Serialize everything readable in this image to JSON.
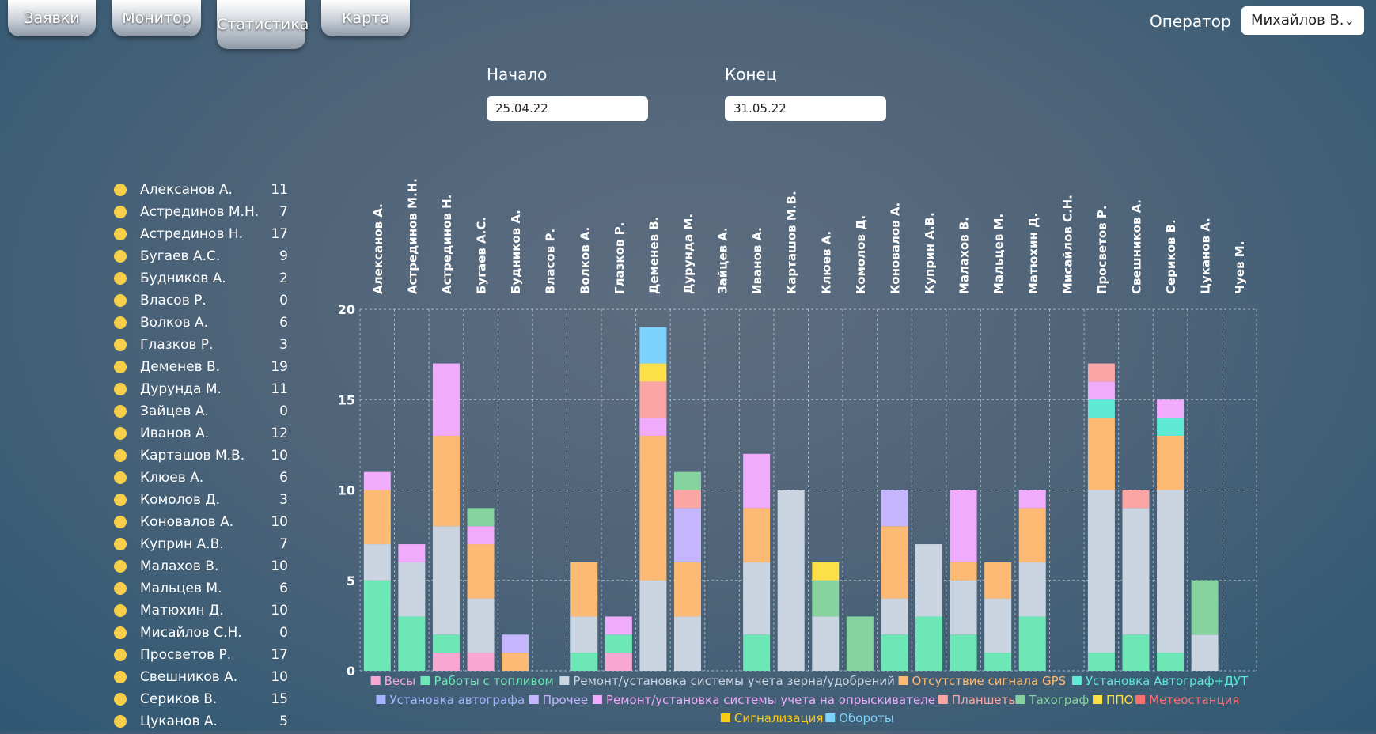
{
  "nav": {
    "tabs": [
      {
        "label": "Заявки"
      },
      {
        "label": "Монитор"
      },
      {
        "label": "Статистика",
        "active": true
      },
      {
        "label": "Карта"
      }
    ]
  },
  "operator": {
    "label": "Оператор",
    "selected": "Михайлов В."
  },
  "period": {
    "start_label": "Начало",
    "start_value": "25.04.22",
    "end_label": "Конец",
    "end_value": "31.05.22"
  },
  "operators_list": [
    {
      "name": "Алексанов А.",
      "count": 11
    },
    {
      "name": "Астрединов М.Н.",
      "count": 7
    },
    {
      "name": "Астрединов Н.",
      "count": 17
    },
    {
      "name": "Бугаев А.С.",
      "count": 9
    },
    {
      "name": "Будников А.",
      "count": 2
    },
    {
      "name": "Власов Р.",
      "count": 0
    },
    {
      "name": "Волков А.",
      "count": 6
    },
    {
      "name": "Глазков Р.",
      "count": 3
    },
    {
      "name": "Деменев В.",
      "count": 19
    },
    {
      "name": "Дурунда М.",
      "count": 11
    },
    {
      "name": "Зайцев А.",
      "count": 0
    },
    {
      "name": "Иванов А.",
      "count": 12
    },
    {
      "name": "Карташов М.В.",
      "count": 10
    },
    {
      "name": "Клюев А.",
      "count": 6
    },
    {
      "name": "Комолов Д.",
      "count": 3
    },
    {
      "name": "Коновалов А.",
      "count": 10
    },
    {
      "name": "Куприн А.В.",
      "count": 7
    },
    {
      "name": "Малахов В.",
      "count": 10
    },
    {
      "name": "Мальцев М.",
      "count": 6
    },
    {
      "name": "Матюхин Д.",
      "count": 10
    },
    {
      "name": "Мисайлов С.Н.",
      "count": 0
    },
    {
      "name": "Просветов Р.",
      "count": 17
    },
    {
      "name": "Свешников А.",
      "count": 10
    },
    {
      "name": "Сериков В.",
      "count": 15
    },
    {
      "name": "Цуканов А.",
      "count": 5
    }
  ],
  "chart_data": {
    "type": "bar",
    "stacked": true,
    "categories": [
      "Алексанов А.",
      "Астрединов М.Н.",
      "Астрединов Н.",
      "Бугаев А.С.",
      "Будников А.",
      "Власов Р.",
      "Волков А.",
      "Глазков Р.",
      "Деменев В.",
      "Дурунда М.",
      "Зайцев А.",
      "Иванов А.",
      "Карташов М.В.",
      "Клюев А.",
      "Комолов Д.",
      "Коновалов А.",
      "Куприн А.В.",
      "Малахов В.",
      "Мальцев М.",
      "Матюхин Д.",
      "Мисайлов С.Н.",
      "Просветов Р.",
      "Свешников А.",
      "Сериков В.",
      "Цуканов А.",
      "Чуев М."
    ],
    "ylim": [
      0,
      20
    ],
    "yticks": [
      0,
      5,
      10,
      15,
      20
    ],
    "grid": true,
    "legend_position": "bottom",
    "series": [
      {
        "name": "Весы",
        "color": "#f9a8d4",
        "values": [
          0,
          0,
          1,
          1,
          0,
          0,
          0,
          1,
          0,
          0,
          0,
          0,
          0,
          0,
          0,
          0,
          0,
          0,
          0,
          0,
          0,
          0,
          0,
          0,
          0,
          0
        ]
      },
      {
        "name": "Работы с топливом",
        "color": "#6ee7b7",
        "values": [
          5,
          3,
          1,
          0,
          0,
          0,
          1,
          1,
          0,
          0,
          0,
          2,
          0,
          0,
          0,
          2,
          3,
          2,
          1,
          3,
          0,
          1,
          2,
          1,
          0,
          0
        ]
      },
      {
        "name": "Ремонт/установка системы учета зерна/удобрений",
        "color": "#cbd5e1",
        "values": [
          2,
          3,
          6,
          3,
          0,
          0,
          2,
          0,
          5,
          3,
          0,
          4,
          10,
          3,
          0,
          2,
          4,
          3,
          3,
          3,
          0,
          9,
          7,
          9,
          2,
          0
        ]
      },
      {
        "name": "Отсутствие сигнала GPS",
        "color": "#fdba74",
        "values": [
          3,
          0,
          5,
          3,
          1,
          0,
          3,
          0,
          8,
          3,
          0,
          3,
          0,
          0,
          0,
          4,
          0,
          1,
          2,
          3,
          0,
          4,
          0,
          3,
          0,
          0
        ]
      },
      {
        "name": "Установка Автограф+ДУТ",
        "color": "#5eead4",
        "values": [
          0,
          0,
          0,
          0,
          0,
          0,
          0,
          0,
          0,
          0,
          0,
          0,
          0,
          0,
          0,
          0,
          0,
          0,
          0,
          0,
          0,
          1,
          0,
          1,
          0,
          0
        ]
      },
      {
        "name": "Установка автографа",
        "color": "#a5b4fc",
        "values": [
          0,
          0,
          0,
          0,
          0,
          0,
          0,
          0,
          0,
          0,
          0,
          0,
          0,
          0,
          0,
          0,
          0,
          0,
          0,
          0,
          0,
          0,
          0,
          0,
          0,
          0
        ]
      },
      {
        "name": "Прочее",
        "color": "#c4b5fd",
        "values": [
          0,
          0,
          0,
          0,
          1,
          0,
          0,
          0,
          0,
          3,
          0,
          0,
          0,
          0,
          0,
          2,
          0,
          0,
          0,
          0,
          0,
          0,
          0,
          0,
          0,
          0
        ]
      },
      {
        "name": "Ремонт/установка системы учета на опрыскивателе",
        "color": "#f0abfc",
        "values": [
          1,
          1,
          4,
          1,
          0,
          0,
          0,
          1,
          1,
          0,
          0,
          3,
          0,
          0,
          0,
          0,
          0,
          4,
          0,
          1,
          0,
          1,
          0,
          1,
          0,
          0
        ]
      },
      {
        "name": "Планшеты",
        "color": "#fca5a5",
        "values": [
          0,
          0,
          0,
          0,
          0,
          0,
          0,
          0,
          2,
          1,
          0,
          0,
          0,
          0,
          0,
          0,
          0,
          0,
          0,
          0,
          0,
          1,
          1,
          0,
          0,
          0
        ]
      },
      {
        "name": "Тахограф",
        "color": "#86d3a0",
        "values": [
          0,
          0,
          0,
          1,
          0,
          0,
          0,
          0,
          0,
          1,
          0,
          0,
          0,
          2,
          3,
          0,
          0,
          0,
          0,
          0,
          0,
          0,
          0,
          0,
          3,
          0
        ]
      },
      {
        "name": "ППО",
        "color": "#fde047",
        "values": [
          0,
          0,
          0,
          0,
          0,
          0,
          0,
          0,
          1,
          0,
          0,
          0,
          0,
          1,
          0,
          0,
          0,
          0,
          0,
          0,
          0,
          0,
          0,
          0,
          0,
          0
        ]
      },
      {
        "name": "Метеостанция",
        "color": "#f87171",
        "values": [
          0,
          0,
          0,
          0,
          0,
          0,
          0,
          0,
          0,
          0,
          0,
          0,
          0,
          0,
          0,
          0,
          0,
          0,
          0,
          0,
          0,
          0,
          0,
          0,
          0,
          0
        ]
      },
      {
        "name": "Сигнализация",
        "color": "#facc15",
        "values": [
          0,
          0,
          0,
          0,
          0,
          0,
          0,
          0,
          0,
          0,
          0,
          0,
          0,
          0,
          0,
          0,
          0,
          0,
          0,
          0,
          0,
          0,
          0,
          0,
          0,
          0
        ]
      },
      {
        "name": "Обороты",
        "color": "#7dd3fc",
        "values": [
          0,
          0,
          0,
          0,
          0,
          0,
          0,
          0,
          2,
          0,
          0,
          0,
          0,
          0,
          0,
          0,
          0,
          0,
          0,
          0,
          0,
          0,
          0,
          0,
          0,
          0
        ]
      }
    ]
  }
}
